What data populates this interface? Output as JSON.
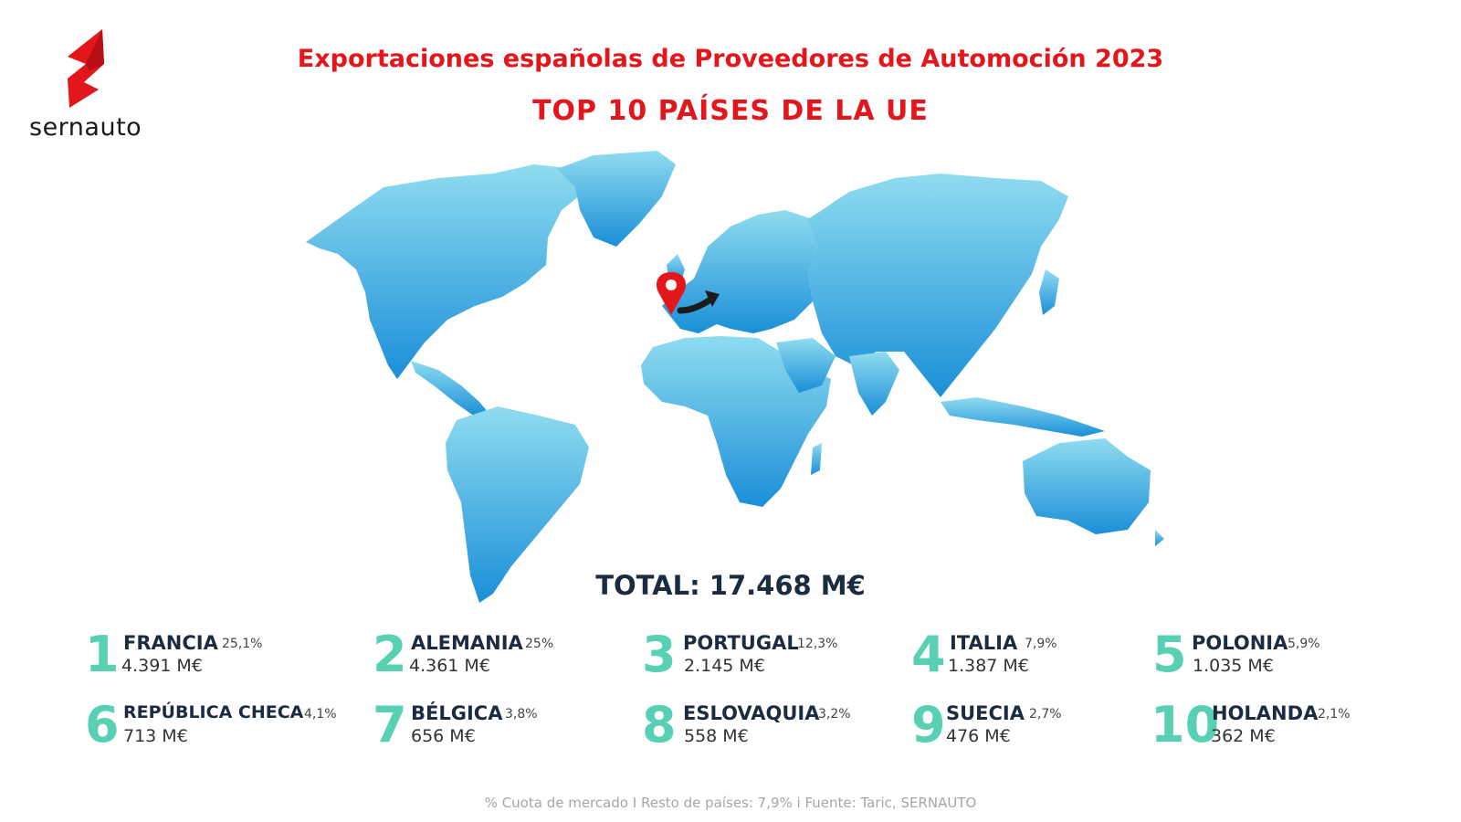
{
  "brand": {
    "name": "sernauto",
    "icon": "sernauto-s-logo-icon",
    "color": "#e3161b"
  },
  "header": {
    "title": "Exportaciones españolas de Proveedores de Automoción 2023",
    "subtitle": "TOP 10 PAÍSES DE LA UE"
  },
  "map": {
    "icon": "world-map",
    "marker_icon": "location-pin-icon",
    "arrow_icon": "curved-arrow-icon",
    "colors": {
      "top": "#8fdcef",
      "bottom": "#1a8fd8",
      "pin": "#e3161b",
      "arrow": "#1b1b1b"
    }
  },
  "total": "TOTAL: 17.468 M€",
  "ranking": [
    {
      "rank": "1",
      "country": "FRANCIA",
      "share": "25,1%",
      "value": "4.391 M€"
    },
    {
      "rank": "2",
      "country": "ALEMANIA",
      "share": "25%",
      "value": "4.361 M€"
    },
    {
      "rank": "3",
      "country": "PORTUGAL",
      "share": "12,3%",
      "value": "2.145 M€"
    },
    {
      "rank": "4",
      "country": "ITALIA",
      "share": "7,9%",
      "value": "1.387 M€"
    },
    {
      "rank": "5",
      "country": "POLONIA",
      "share": "5,9%",
      "value": "1.035 M€"
    },
    {
      "rank": "6",
      "country": "REPÚBLICA CHECA",
      "share": "4,1%",
      "value": "713 M€"
    },
    {
      "rank": "7",
      "country": "BÉLGICA",
      "share": "3,8%",
      "value": "656 M€"
    },
    {
      "rank": "8",
      "country": "ESLOVAQUIA",
      "share": "3,2%",
      "value": "558 M€"
    },
    {
      "rank": "9",
      "country": "SUECIA",
      "share": "2,7%",
      "value": "476 M€"
    },
    {
      "rank": "10",
      "country": "HOLANDA",
      "share": "2,1%",
      "value": "362 M€"
    }
  ],
  "accent_color": "#57d0b3",
  "footer": "% Cuota de mercado I Resto de países: 7,9% i  Fuente: Taric, SERNAUTO"
}
